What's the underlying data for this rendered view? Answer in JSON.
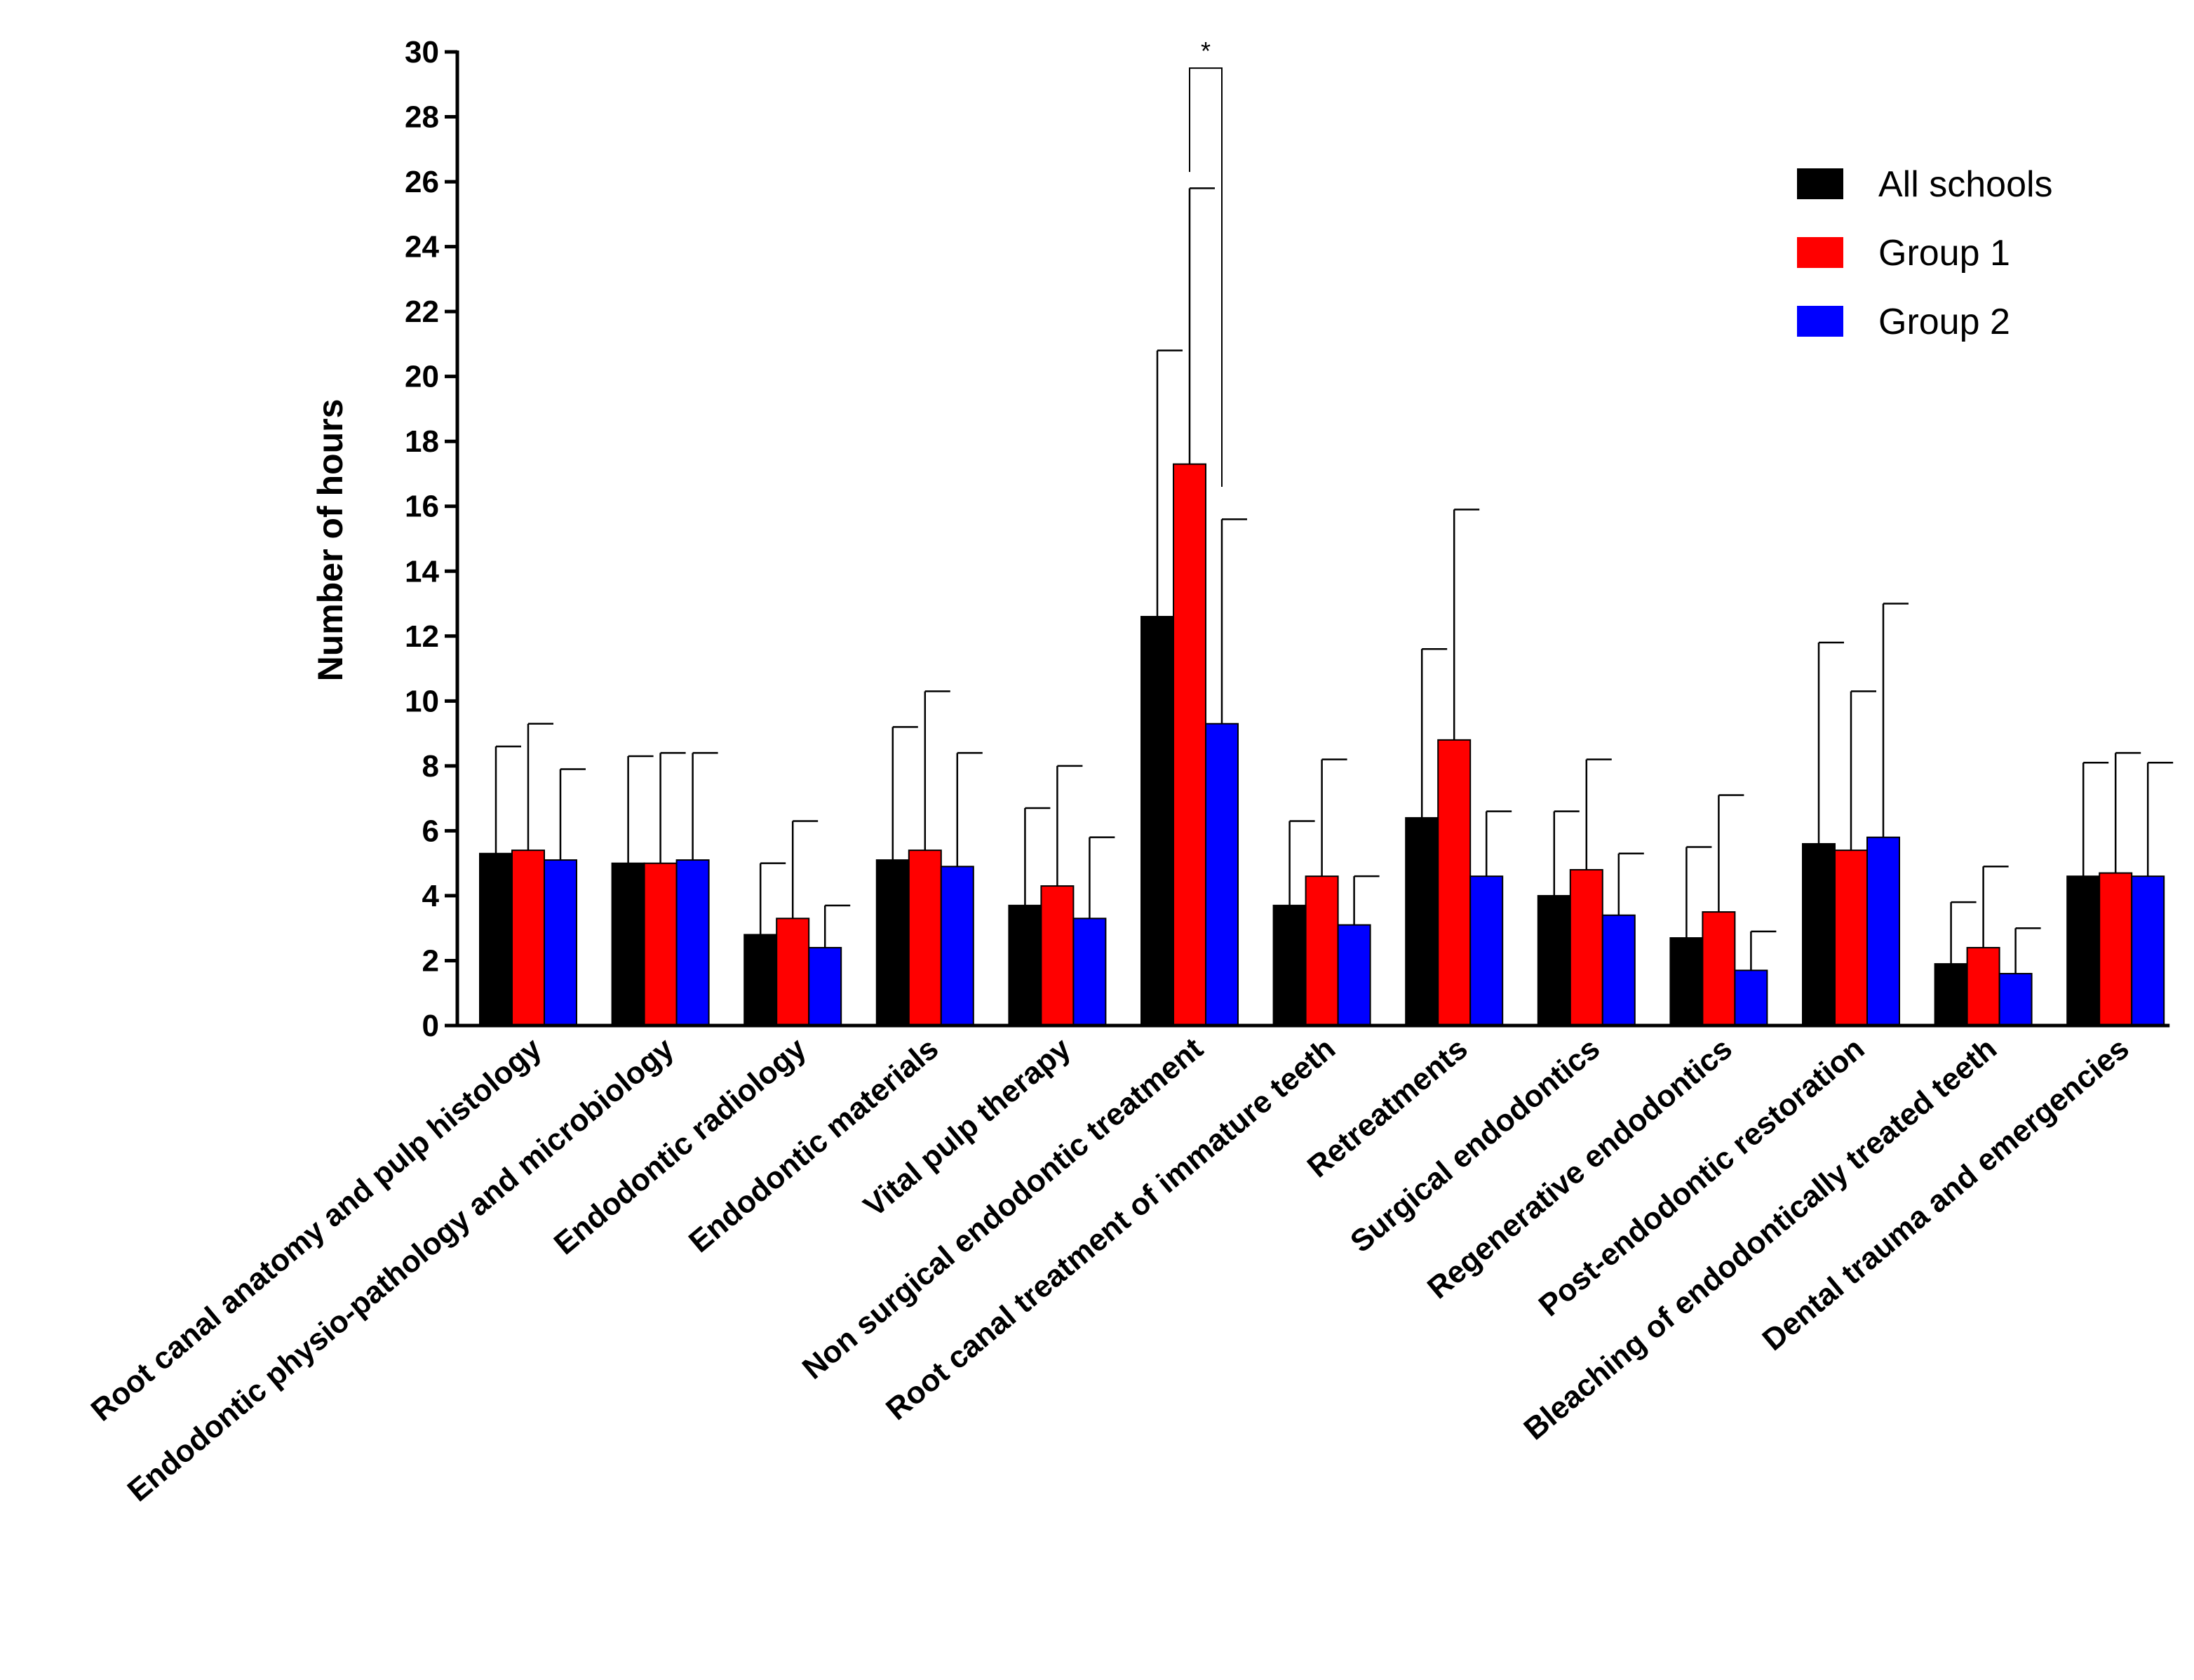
{
  "chart_data": {
    "type": "bar",
    "ylabel": "Number of hours",
    "xlabel": "",
    "ylim": [
      0,
      30
    ],
    "yticks": [
      0,
      2,
      4,
      6,
      8,
      10,
      12,
      14,
      16,
      18,
      20,
      22,
      24,
      26,
      28,
      30
    ],
    "grid": false,
    "legend_position": "top-right",
    "categories": [
      "Root canal anatomy and pulp histology",
      "Endodontic physio-pathology and microbiology",
      "Endodontic radiology",
      "Endodontic materials",
      "Vital pulp therapy",
      "Non surgical endodontic treatment",
      "Root canal treatment of immature teeth",
      "Retreatments",
      "Surgical endodontics",
      "Regenerative endodontics",
      "Post-endodontic restoration",
      "Bleaching of endodontically treated teeth",
      "Dental trauma and emergencies"
    ],
    "series": [
      {
        "name": "All schools",
        "color": "#000000",
        "values": [
          5.3,
          5.0,
          2.8,
          5.1,
          3.7,
          12.6,
          3.7,
          6.4,
          4.0,
          2.7,
          5.6,
          1.9,
          4.6
        ],
        "error_upper": [
          8.6,
          8.3,
          5.0,
          9.2,
          6.7,
          20.8,
          6.3,
          11.6,
          6.6,
          5.5,
          11.8,
          3.8,
          8.1
        ]
      },
      {
        "name": "Group 1",
        "color": "#ff0000",
        "values": [
          5.4,
          5.0,
          3.3,
          5.4,
          4.3,
          17.3,
          4.6,
          8.8,
          4.8,
          3.5,
          5.4,
          2.4,
          4.7
        ],
        "error_upper": [
          9.3,
          8.4,
          6.3,
          10.3,
          8.0,
          25.8,
          8.2,
          15.9,
          8.2,
          7.1,
          10.3,
          4.9,
          8.4
        ]
      },
      {
        "name": "Group 2",
        "color": "#0000ff",
        "values": [
          5.1,
          5.1,
          2.4,
          4.9,
          3.3,
          9.3,
          3.1,
          4.6,
          3.4,
          1.7,
          5.8,
          1.6,
          4.6
        ],
        "error_upper": [
          7.9,
          8.4,
          3.7,
          8.4,
          5.8,
          15.6,
          4.6,
          6.6,
          5.3,
          2.9,
          13.0,
          3.0,
          8.1
        ]
      }
    ],
    "annotations": [
      {
        "text": "*",
        "category_index": 5,
        "from_series": 1,
        "to_series": 2,
        "left_bottom_value": 26.3,
        "right_bottom_value": 16.6,
        "top_value": 29.5
      }
    ]
  }
}
